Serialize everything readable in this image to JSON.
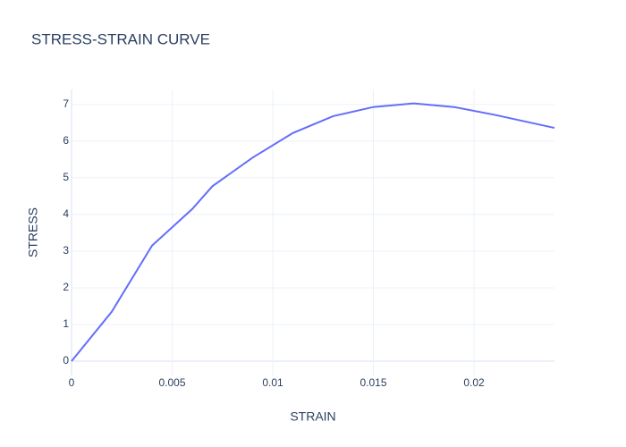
{
  "chart_data": {
    "type": "line",
    "title": "STRESS-STRAIN CURVE",
    "x_label": "STRAIN",
    "y_label": "STRESS",
    "x": [
      0,
      0.002,
      0.004,
      0.006,
      0.007,
      0.009,
      0.011,
      0.013,
      0.015,
      0.017,
      0.019,
      0.021,
      0.024
    ],
    "series": [
      {
        "name": "STRESS",
        "color": "#636efa",
        "values": [
          0,
          1.35,
          3.15,
          4.15,
          4.77,
          5.55,
          6.22,
          6.68,
          6.93,
          7.03,
          6.93,
          6.72,
          6.36
        ]
      }
    ],
    "xlim": [
      0,
      0.024
    ],
    "xticks": [
      0,
      0.005,
      0.01,
      0.015,
      0.02
    ],
    "ylim": [
      -0.39,
      7.41
    ],
    "yticks": [
      0,
      1,
      2,
      3,
      4,
      5,
      6,
      7
    ],
    "grid": true
  }
}
